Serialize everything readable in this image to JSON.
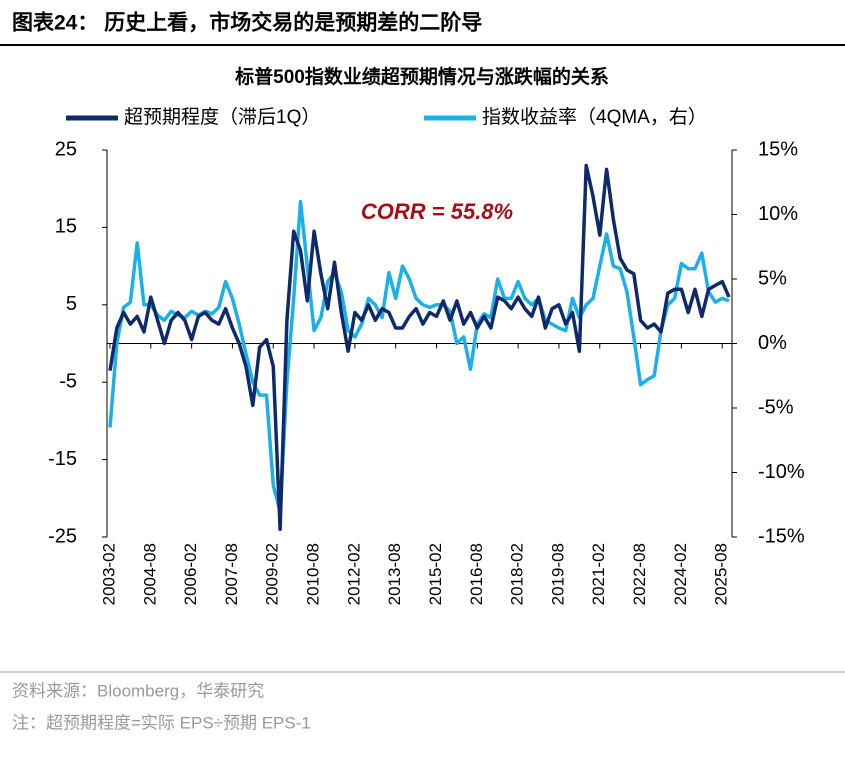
{
  "header": "图表24： 历史上看，市场交易的是预期差的二阶导",
  "chart_data": {
    "type": "line",
    "title": "标普500指数业绩超预期情况与涨跌幅的关系",
    "annotation": "CORR = 55.8%",
    "categories": [
      "2003-02",
      null,
      null,
      null,
      null,
      null,
      "2004-08",
      null,
      null,
      null,
      null,
      null,
      "2006-02",
      null,
      null,
      null,
      null,
      null,
      "2007-08",
      null,
      null,
      null,
      null,
      null,
      "2009-02",
      null,
      null,
      null,
      null,
      null,
      "2010-08",
      null,
      null,
      null,
      null,
      null,
      "2012-02",
      null,
      null,
      null,
      null,
      null,
      "2013-08",
      null,
      null,
      null,
      null,
      null,
      "2015-02",
      null,
      null,
      null,
      null,
      null,
      "2016-08",
      null,
      null,
      null,
      null,
      null,
      "2018-02",
      null,
      null,
      null,
      null,
      null,
      "2019-08",
      null,
      null,
      null,
      null,
      null,
      "2021-02",
      null,
      null,
      null,
      null,
      null,
      "2022-08",
      null,
      null,
      null,
      null,
      null,
      "2024-02",
      null,
      null,
      null,
      null,
      null,
      "2025-08",
      null
    ],
    "series": [
      {
        "name": "超预期程度（滞后1Q）",
        "color": "#0e2a6b",
        "axis": "y",
        "values": [
          -3.5,
          2,
          4,
          2.5,
          3.5,
          1.5,
          6,
          3,
          0,
          3,
          4,
          3,
          0.5,
          3.5,
          4,
          3,
          2.5,
          4.5,
          2,
          0,
          -3,
          -8,
          -0.5,
          0.5,
          -3,
          -24,
          3,
          14.5,
          12,
          5.5,
          14.5,
          9,
          4.5,
          10.5,
          4,
          -1,
          4,
          3,
          5,
          3,
          4.5,
          4,
          2,
          2,
          3.5,
          4.5,
          2.5,
          4,
          3.5,
          5.5,
          3,
          5.5,
          2.5,
          4,
          2,
          3.5,
          2,
          6,
          5.5,
          4.5,
          6,
          4.5,
          3.5,
          6,
          2,
          4.5,
          5,
          2.5,
          4,
          -1,
          23,
          19,
          14,
          22.5,
          16,
          11,
          9.5,
          9,
          3,
          2,
          2.5,
          1.5,
          6.5,
          7,
          7,
          4,
          7,
          3.5,
          7,
          7.5,
          8,
          6
        ]
      },
      {
        "name": "指数收益率（4QMA，右）",
        "color": "#1ab0e8",
        "axis": "y2",
        "values": [
          -6.5,
          0,
          2.8,
          3.2,
          7.8,
          3,
          3,
          2.2,
          1.8,
          2.5,
          2.2,
          2,
          2.5,
          2.2,
          2.5,
          2.3,
          2.8,
          4.8,
          3.5,
          1.5,
          -0.8,
          -3,
          -4,
          -4,
          -11,
          -13,
          -3,
          3.5,
          11,
          6,
          1,
          2,
          4.8,
          5.5,
          4,
          1,
          0.5,
          1.5,
          3.5,
          3,
          2,
          5.5,
          3.5,
          6,
          5,
          3.5,
          3,
          2.8,
          3,
          3,
          2.5,
          0,
          0.5,
          -2,
          1.5,
          2.3,
          2,
          5,
          3.5,
          3.5,
          4.8,
          3.5,
          3,
          3.5,
          1.8,
          1.5,
          1.2,
          1,
          3.5,
          2,
          3,
          3.5,
          6,
          8.5,
          6,
          5.8,
          4,
          0.5,
          -3.2,
          -2.8,
          -2.5,
          1,
          3,
          3.5,
          6.2,
          5.8,
          5.8,
          7,
          4,
          3.2,
          3.5,
          3.3
        ]
      }
    ],
    "ylim": [
      -25,
      25
    ],
    "yticks": [
      -25,
      -15,
      -5,
      5,
      15,
      25
    ],
    "y2lim": [
      -15,
      15
    ],
    "y2ticks": [
      {
        "value": -15,
        "label": "-15%"
      },
      {
        "value": -10,
        "label": "-10%"
      },
      {
        "value": -5,
        "label": "-5%"
      },
      {
        "value": 0,
        "label": "0%"
      },
      {
        "value": 5,
        "label": "5%"
      },
      {
        "value": 10,
        "label": "10%"
      },
      {
        "value": 15,
        "label": "15%"
      }
    ]
  },
  "source": "资料来源：Bloomberg，华泰研究",
  "note": "注：超预期程度=实际 EPS÷预期 EPS-1"
}
